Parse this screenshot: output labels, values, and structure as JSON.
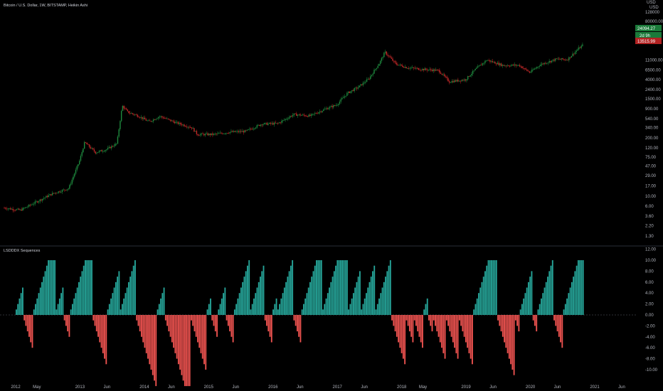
{
  "header": {
    "symbol_title": "Bitcoin / U.S. Dollar, 1W, BITSTAMP, Heikin Ashi",
    "currency": "USD",
    "quote_currency_code": "USD"
  },
  "price_tags": {
    "current_price": "24094.27",
    "time_to_close": "2d 9h",
    "reference_price": "13515.99"
  },
  "indicator": {
    "name": "LSDDDX Sequences"
  },
  "colors": {
    "background": "#000000",
    "bull": "#26a69a",
    "bear": "#ef5350",
    "candle_up": "#1e8a3e",
    "candle_down": "#c62828",
    "axis_text": "#b2b5be",
    "separator": "#2a2e39",
    "price_tag_green": "#1b7a3a",
    "price_tag_red": "#b22222"
  },
  "chart_data": [
    {
      "type": "line",
      "title": "Bitcoin / U.S. Dollar, 1W, BITSTAMP, Heikin Ashi",
      "style": "heikin-ashi-candles",
      "yscale": "log",
      "ylabel": "USD",
      "yticks": [
        "128000",
        "80000.00",
        "40000",
        "24094.27",
        "13515.99",
        "11000.00",
        "6500.00",
        "4000.00",
        "2400.00",
        "1500.00",
        "900.00",
        "540.00",
        "340.00",
        "200.00",
        "120.00",
        "75.00",
        "47.00",
        "29.00",
        "17.00",
        "10.00",
        "6.00",
        "3.60",
        "2.20",
        "1.30"
      ],
      "x": [
        "2012-01",
        "2012-04",
        "2012-07",
        "2012-10",
        "2013-01",
        "2013-03",
        "2013-04",
        "2013-06",
        "2013-08",
        "2013-10",
        "2013-11",
        "2013-12",
        "2014-02",
        "2014-04",
        "2014-06",
        "2014-09",
        "2014-12",
        "2015-01",
        "2015-04",
        "2015-07",
        "2015-10",
        "2016-01",
        "2016-04",
        "2016-07",
        "2016-10",
        "2017-01",
        "2017-03",
        "2017-05",
        "2017-07",
        "2017-09",
        "2017-11",
        "2017-12",
        "2018-02",
        "2018-04",
        "2018-07",
        "2018-10",
        "2018-12",
        "2019-03",
        "2019-05",
        "2019-07",
        "2019-10",
        "2020-01",
        "2020-03",
        "2020-05",
        "2020-08",
        "2020-10",
        "2020-12",
        "2021-01"
      ],
      "values": [
        5.5,
        4.9,
        7.5,
        11.5,
        15,
        60,
        160,
        95,
        110,
        150,
        1050,
        760,
        620,
        460,
        610,
        440,
        340,
        240,
        240,
        270,
        280,
        410,
        420,
        670,
        620,
        900,
        1100,
        2000,
        2700,
        4200,
        9500,
        16500,
        9000,
        7500,
        6800,
        6400,
        3600,
        4000,
        7000,
        11000,
        8300,
        8400,
        5800,
        8700,
        11500,
        11200,
        19200,
        24094.27
      ]
    },
    {
      "type": "bar",
      "title": "LSDDDX Sequences",
      "ylim": [
        -12,
        12
      ],
      "yticks": [
        "12.00",
        "10.00",
        "8.00",
        "6.00",
        "4.00",
        "2.00",
        "0.00",
        "-2.00",
        "-4.00",
        "-6.00",
        "-8.00",
        "-10.00"
      ],
      "positive_color": "#26a69a",
      "negative_color": "#ef5350",
      "values": [
        1,
        2,
        3,
        4,
        5,
        -1,
        -2,
        -3,
        -4,
        -5,
        -6,
        1,
        2,
        3,
        4,
        5,
        6,
        7,
        8,
        9,
        10,
        10,
        10,
        10,
        10,
        1,
        2,
        3,
        4,
        5,
        -1,
        -2,
        -3,
        -4,
        1,
        2,
        3,
        4,
        5,
        6,
        7,
        8,
        9,
        10,
        10,
        10,
        10,
        10,
        -1,
        -2,
        -3,
        -4,
        -5,
        -6,
        -7,
        -8,
        -9,
        1,
        2,
        3,
        4,
        5,
        6,
        7,
        8,
        1,
        2,
        3,
        4,
        5,
        6,
        7,
        8,
        9,
        10,
        -1,
        -2,
        -3,
        -4,
        -5,
        -6,
        -7,
        -8,
        -9,
        -10,
        -11,
        -12,
        -13,
        1,
        2,
        3,
        4,
        5,
        -1,
        -2,
        -3,
        -4,
        -5,
        -6,
        -7,
        -8,
        -9,
        -10,
        -11,
        -12,
        -13,
        -13,
        -13,
        -13,
        -1,
        -2,
        -3,
        -4,
        -5,
        -6,
        -7,
        -8,
        -9,
        -10,
        1,
        2,
        3,
        -1,
        -2,
        -3,
        -4,
        1,
        2,
        3,
        4,
        5,
        -1,
        -2,
        -3,
        -4,
        -5,
        1,
        2,
        3,
        4,
        5,
        6,
        7,
        8,
        9,
        10,
        1,
        2,
        3,
        4,
        5,
        6,
        7,
        8,
        9,
        -1,
        -2,
        -3,
        -4,
        -5,
        1,
        2,
        3,
        1,
        2,
        3,
        4,
        5,
        6,
        7,
        8,
        9,
        10,
        -1,
        -2,
        -3,
        -4,
        -5,
        1,
        2,
        3,
        4,
        5,
        6,
        7,
        8,
        9,
        10,
        10,
        10,
        10,
        1,
        2,
        3,
        4,
        5,
        6,
        7,
        8,
        9,
        10,
        10,
        10,
        10,
        10,
        10,
        10,
        1,
        2,
        3,
        4,
        5,
        6,
        7,
        8,
        1,
        2,
        3,
        4,
        5,
        6,
        7,
        8,
        9,
        1,
        2,
        3,
        4,
        5,
        6,
        7,
        8,
        9,
        10,
        -1,
        -2,
        -3,
        -4,
        -5,
        -6,
        -7,
        -8,
        -9,
        -1,
        -2,
        -3,
        -4,
        -5,
        -1,
        -2,
        -3,
        -4,
        -5,
        -6,
        1,
        2,
        3,
        -1,
        -2,
        -3,
        -1,
        -2,
        -3,
        -4,
        -5,
        -6,
        -7,
        -8,
        -1,
        -2,
        -3,
        -4,
        -5,
        -6,
        -7,
        -8,
        -1,
        -2,
        -3,
        -4,
        -5,
        -6,
        -7,
        -8,
        -9,
        1,
        2,
        3,
        4,
        5,
        6,
        7,
        8,
        9,
        10,
        10,
        10,
        10,
        10,
        10,
        -1,
        -2,
        -3,
        -4,
        -5,
        -6,
        -7,
        -8,
        -9,
        -10,
        -11,
        -1,
        -2,
        -3,
        1,
        2,
        3,
        4,
        5,
        6,
        7,
        8,
        -1,
        -2,
        -3,
        1,
        2,
        3,
        4,
        5,
        6,
        7,
        8,
        9,
        10,
        -1,
        -2,
        -3,
        -4,
        -5,
        -6,
        1,
        2,
        3,
        4,
        5,
        6,
        7,
        8,
        9,
        10,
        10,
        10,
        10
      ],
      "xticks": [
        "2012",
        "May",
        "2013",
        "Jun",
        "2014",
        "Jun",
        "2015",
        "Jun",
        "2016",
        "Jun",
        "2017",
        "Jun",
        "2018",
        "May",
        "2019",
        "Jun",
        "2020",
        "Jun",
        "2021",
        "Jun"
      ]
    }
  ]
}
